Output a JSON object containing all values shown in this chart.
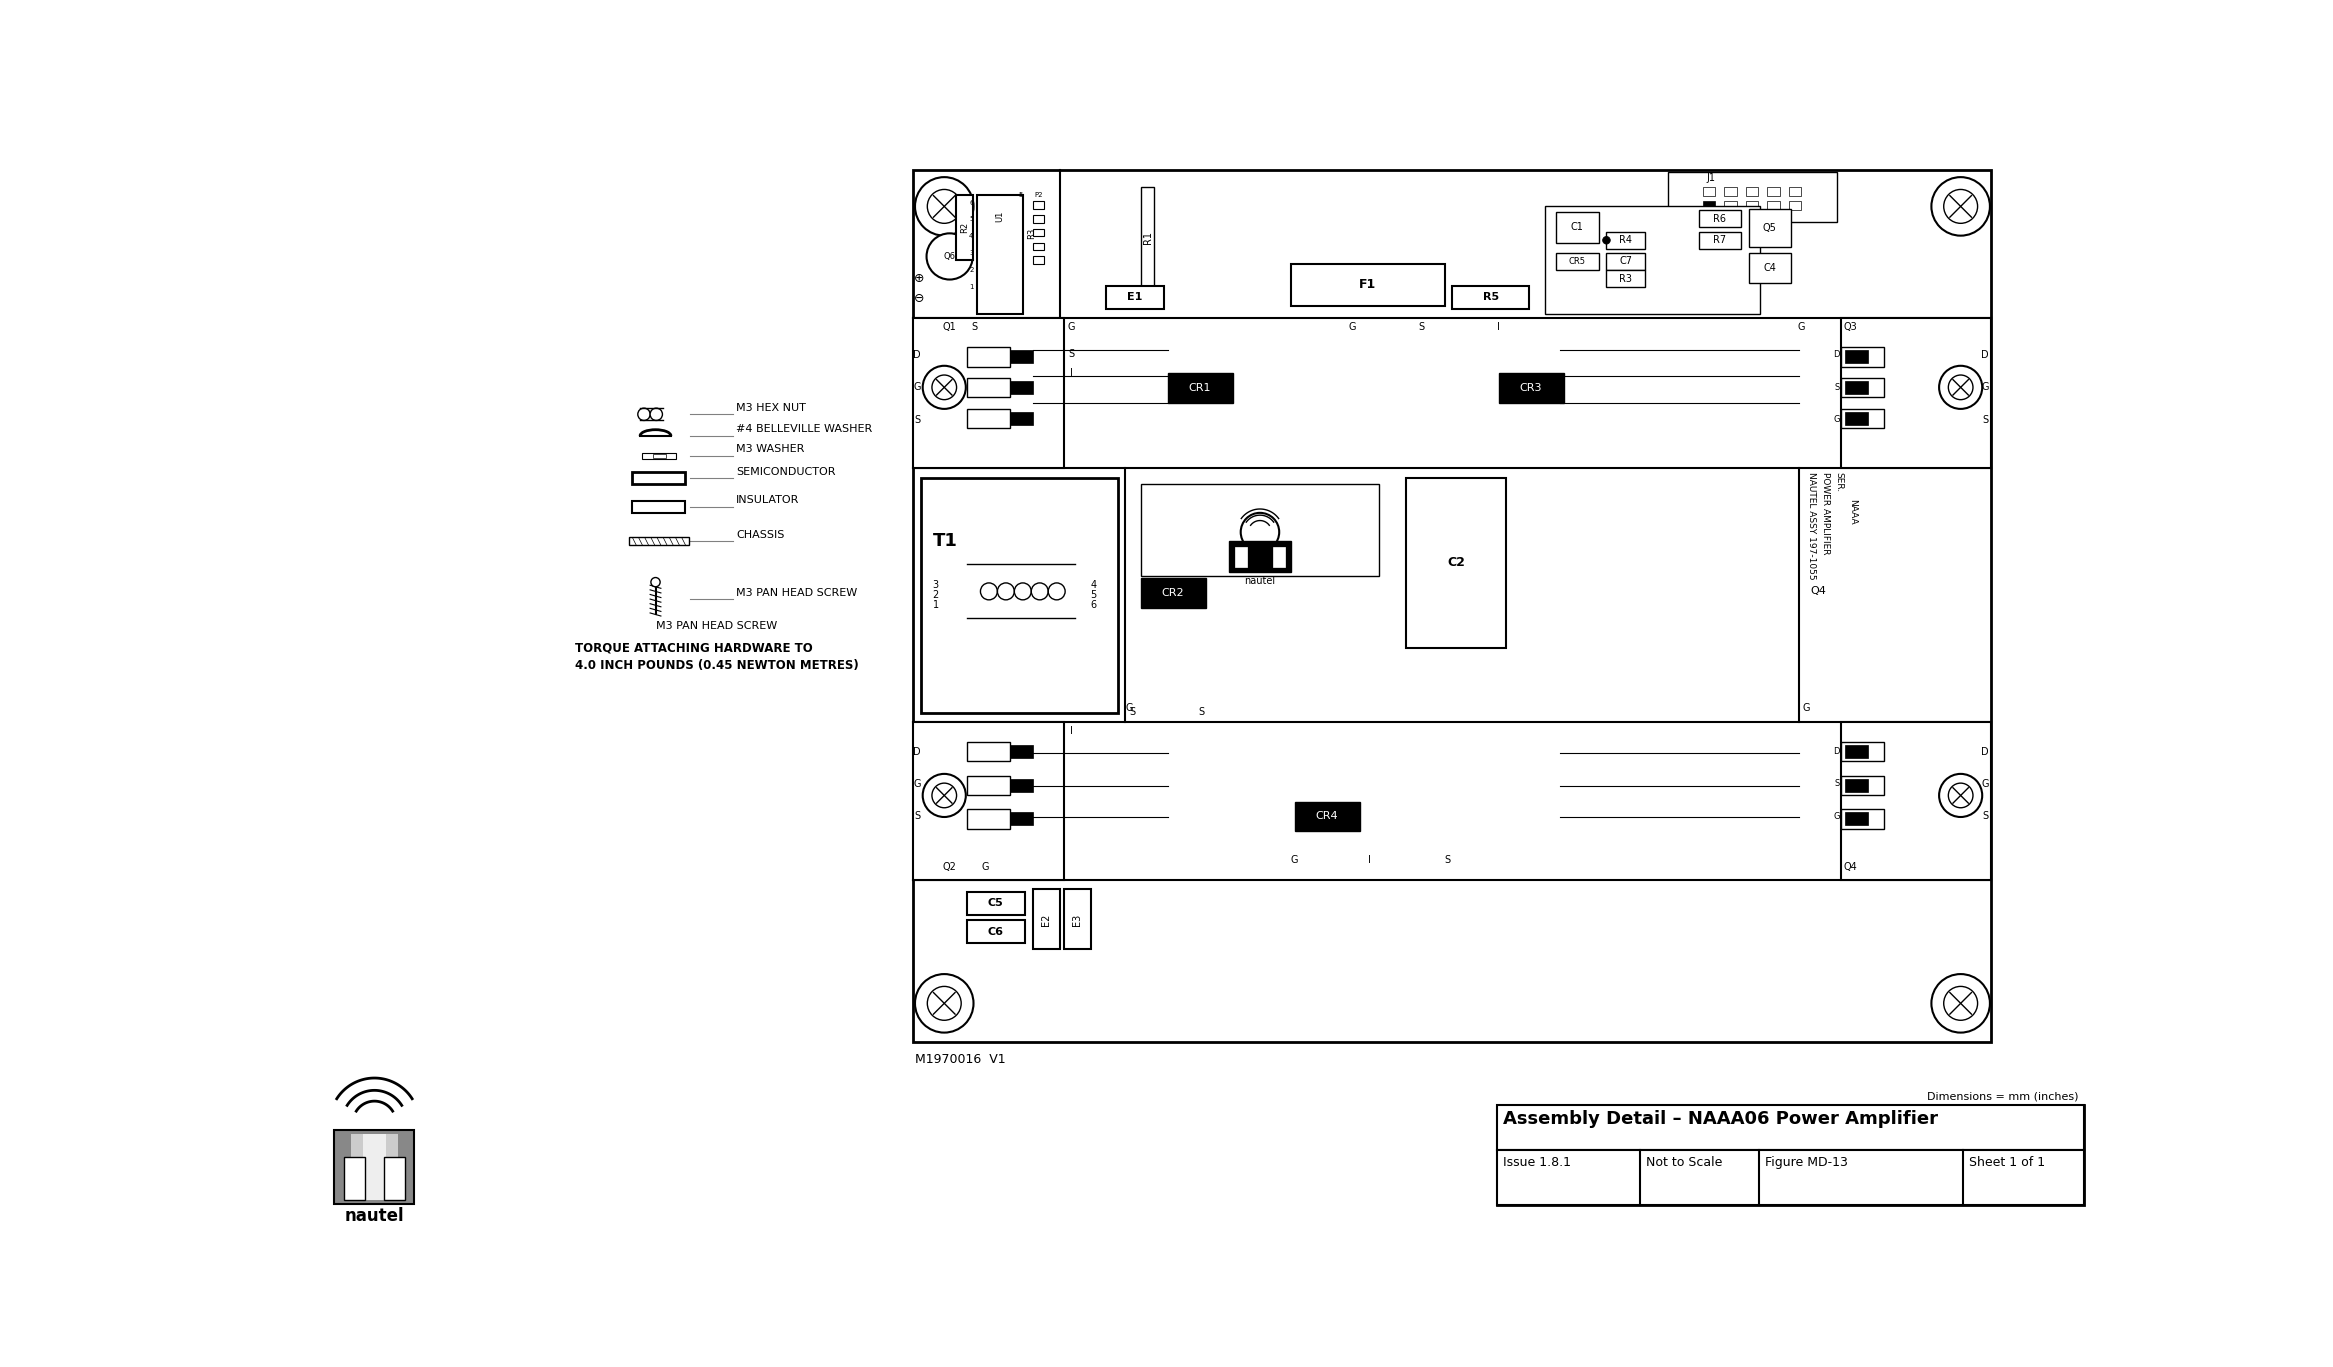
{
  "bg_color": "#ffffff",
  "fig_width": 23.33,
  "fig_height": 13.67,
  "dpi": 100,
  "title_text": "Assembly Detail – NAAA06 Power Amplifier",
  "issue_text": "Issue 1.8.1",
  "scale_text": "Not to Scale",
  "figure_text": "Figure MD-13",
  "sheet_text": "Sheet 1 of 1",
  "dim_text": "Dimensions = mm (inches)",
  "part_num": "M1970016  V1",
  "torque_line1": "TORQUE ATTACHING HARDWARE TO",
  "torque_line2": "4.0 INCH POUNDS (0.45 NEWTON METRES)"
}
